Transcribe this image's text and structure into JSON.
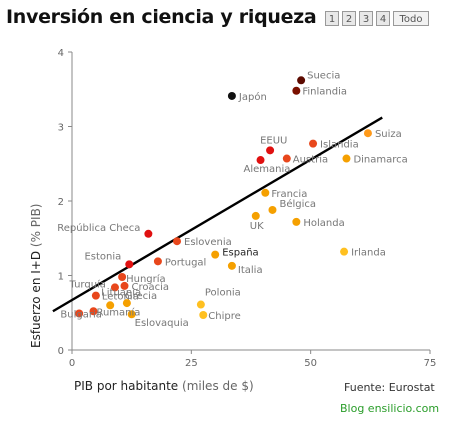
{
  "title": "Inversión en ciencia y riqueza",
  "pager": {
    "pages": [
      "1",
      "2",
      "3",
      "4"
    ],
    "all_label": "Todo"
  },
  "source": "Fuente:  Eurostat",
  "blog": "Blog ensilicio.com",
  "colors": {
    "trend": "#000000",
    "axis": "#888888",
    "highlight_label": "#222222"
  },
  "chart_data": {
    "type": "scatter",
    "title": "Inversión en ciencia y riqueza",
    "xlabel": "PIB por habitante",
    "xlabel_unit": "(miles de $)",
    "ylabel": "Esfuerzo en I+D",
    "ylabel_unit": "(% PIB)",
    "xlim": [
      0,
      75
    ],
    "ylim": [
      0,
      4
    ],
    "xticks": [
      0,
      25,
      50,
      75
    ],
    "yticks": [
      0,
      1,
      2,
      3,
      4
    ],
    "grid": false,
    "trendline": [
      [
        -4,
        0.52
      ],
      [
        65,
        3.12
      ]
    ],
    "points": [
      {
        "label": "Suecia",
        "x": 48.0,
        "y": 3.62,
        "color": "#5c0a00"
      },
      {
        "label": "Finlandia",
        "x": 47.0,
        "y": 3.48,
        "color": "#7a1000"
      },
      {
        "label": "Japón",
        "x": 33.5,
        "y": 3.41,
        "color": "#111111"
      },
      {
        "label": "Suiza",
        "x": 62.0,
        "y": 2.91,
        "color": "#ff9a1a"
      },
      {
        "label": "Islandia",
        "x": 50.5,
        "y": 2.77,
        "color": "#e8471c"
      },
      {
        "label": "EEUU",
        "x": 41.5,
        "y": 2.68,
        "color": "#e01010"
      },
      {
        "label": "Austria",
        "x": 45.0,
        "y": 2.57,
        "color": "#e8471c"
      },
      {
        "label": "Dinamarca",
        "x": 57.5,
        "y": 2.57,
        "color": "#f5a000"
      },
      {
        "label": "Alemania",
        "x": 39.5,
        "y": 2.55,
        "color": "#e01010"
      },
      {
        "label": "Francia",
        "x": 40.5,
        "y": 2.11,
        "color": "#f5a000"
      },
      {
        "label": "Bélgica",
        "x": 42.0,
        "y": 1.88,
        "color": "#f5a000"
      },
      {
        "label": "UK",
        "x": 38.5,
        "y": 1.8,
        "color": "#f5a000"
      },
      {
        "label": "Holanda",
        "x": 47.0,
        "y": 1.72,
        "color": "#f5a000"
      },
      {
        "label": "República Checa",
        "x": 16.0,
        "y": 1.56,
        "color": "#e01010"
      },
      {
        "label": "Eslovenia",
        "x": 22.0,
        "y": 1.46,
        "color": "#e8471c"
      },
      {
        "label": "Irlanda",
        "x": 57.0,
        "y": 1.32,
        "color": "#ffc020"
      },
      {
        "label": "España",
        "x": 30.0,
        "y": 1.28,
        "color": "#f5a000",
        "highlight": true
      },
      {
        "label": "Portugal",
        "x": 18.0,
        "y": 1.19,
        "color": "#e8471c"
      },
      {
        "label": "Estonia",
        "x": 12.0,
        "y": 1.15,
        "color": "#e01010"
      },
      {
        "label": "Italia",
        "x": 33.5,
        "y": 1.13,
        "color": "#f5a000"
      },
      {
        "label": "Hungría",
        "x": 10.5,
        "y": 0.98,
        "color": "#e8471c"
      },
      {
        "label": "Croacia",
        "x": 11.0,
        "y": 0.86,
        "color": "#e8471c"
      },
      {
        "label": "Turquía",
        "x": 9.0,
        "y": 0.84,
        "color": "#e8471c"
      },
      {
        "label": "Letonia",
        "x": 5.0,
        "y": 0.73,
        "color": "#e8471c"
      },
      {
        "label": "Grecia",
        "x": 11.5,
        "y": 0.63,
        "color": "#f5a000"
      },
      {
        "label": "Polonia",
        "x": 27.0,
        "y": 0.61,
        "color": "#ffc020"
      },
      {
        "label": "Lituania",
        "x": 8.0,
        "y": 0.6,
        "color": "#f5a000"
      },
      {
        "label": "Rumanía",
        "x": 4.5,
        "y": 0.52,
        "color": "#e8471c"
      },
      {
        "label": "Bulgaria",
        "x": 1.5,
        "y": 0.49,
        "color": "#e8471c"
      },
      {
        "label": "Eslovaquia",
        "x": 12.5,
        "y": 0.48,
        "color": "#f5a000"
      },
      {
        "label": "Chipre",
        "x": 27.5,
        "y": 0.47,
        "color": "#ffc020"
      }
    ]
  }
}
